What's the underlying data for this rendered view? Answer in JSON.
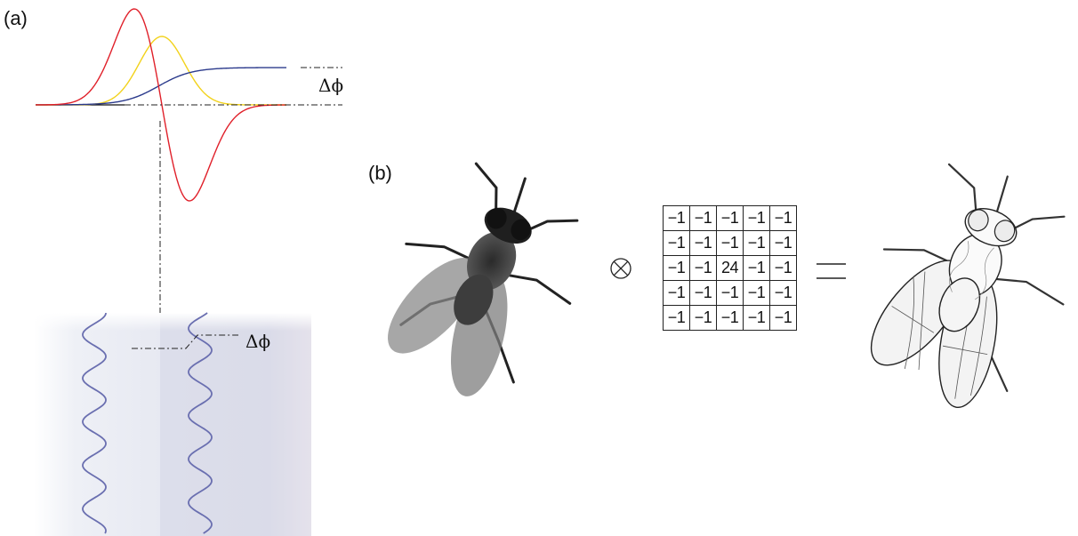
{
  "panel_a": {
    "label": "(a)",
    "delta_phi_top": "Δϕ",
    "delta_phi_bottom": "Δϕ"
  },
  "panel_b": {
    "label": "(b)",
    "convolution_symbol": "⊗",
    "equals_symbol": "=",
    "kernel": [
      [
        "−1",
        "−1",
        "−1",
        "−1",
        "−1"
      ],
      [
        "−1",
        "−1",
        "−1",
        "−1",
        "−1"
      ],
      [
        "−1",
        "−1",
        "24",
        "−1",
        "−1"
      ],
      [
        "−1",
        "−1",
        "−1",
        "−1",
        "−1"
      ],
      [
        "−1",
        "−1",
        "−1",
        "−1",
        "−1"
      ]
    ]
  },
  "colors": {
    "step_curve": "#2b3a8c",
    "gaussian_curve": "#f2d21b",
    "derivative_curve": "#e0202a",
    "wave": "#6a6fb0"
  }
}
